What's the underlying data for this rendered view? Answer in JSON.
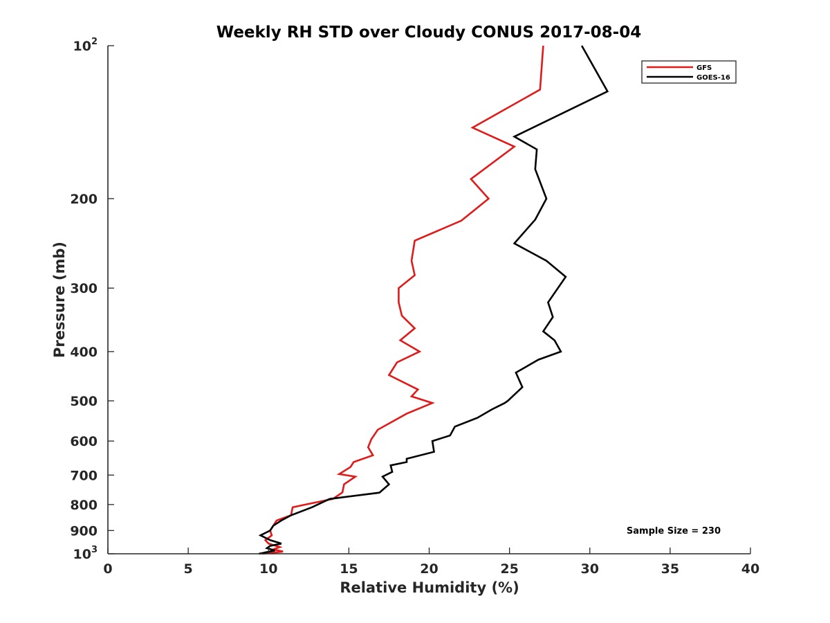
{
  "chart_data": {
    "type": "line",
    "title": "Weekly RH STD over Cloudy CONUS 2017-08-04",
    "xlabel": "Relative Humidity (%)",
    "ylabel": "Pressure (mb)",
    "xlim": [
      0,
      40
    ],
    "ylim": [
      100,
      1000
    ],
    "yscale": "log",
    "y_reversed": true,
    "grid": false,
    "xticks": [
      0,
      5,
      10,
      15,
      20,
      25,
      30,
      35,
      40
    ],
    "xtick_labels": [
      "0",
      "5",
      "10",
      "15",
      "20",
      "25",
      "30",
      "35",
      "40"
    ],
    "yticks": [
      100,
      200,
      300,
      400,
      500,
      600,
      700,
      800,
      900,
      1000
    ],
    "ytick_labels": [
      {
        "base": "10",
        "exp": "2"
      },
      {
        "base": "200"
      },
      {
        "base": "300"
      },
      {
        "base": "400"
      },
      {
        "base": "500"
      },
      {
        "base": "600"
      },
      {
        "base": "700"
      },
      {
        "base": "800"
      },
      {
        "base": "900"
      },
      {
        "base": "10",
        "exp": "3"
      }
    ],
    "legend_position": "top-right",
    "annotation": "Sample Size = 230",
    "series": [
      {
        "name": "GFS",
        "color": "#e11919",
        "x": [
          27.1,
          26.9,
          22.7,
          25.3,
          22.6,
          23.7,
          22.0,
          19.1,
          18.9,
          19.1,
          18.1,
          18.1,
          18.3,
          19.1,
          18.2,
          19.4,
          18.0,
          17.5,
          19.3,
          18.9,
          20.2,
          18.6,
          16.8,
          16.4,
          16.2,
          16.5,
          15.3,
          15.1,
          14.4,
          15.4,
          14.7,
          14.6,
          14.0,
          12.3,
          11.5,
          11.4,
          10.5,
          10.3,
          10.1,
          10.2,
          9.8,
          10.0,
          10.7,
          10.3,
          10.9,
          9.6
        ],
        "y": [
          100,
          122,
          145,
          158,
          183,
          200,
          221,
          242,
          265,
          283,
          300,
          320,
          340,
          360,
          380,
          400,
          420,
          445,
          475,
          490,
          505,
          530,
          570,
          595,
          617,
          640,
          660,
          675,
          697,
          705,
          730,
          757,
          780,
          800,
          810,
          840,
          860,
          880,
          900,
          920,
          940,
          955,
          970,
          980,
          990,
          1000
        ]
      },
      {
        "name": "GOES-16",
        "color": "#000000",
        "x": [
          29.5,
          31.1,
          25.3,
          26.7,
          26.6,
          27.3,
          26.6,
          25.3,
          27.3,
          28.5,
          27.4,
          27.7,
          27.1,
          27.8,
          28.2,
          26.8,
          25.4,
          25.8,
          24.9,
          24.7,
          23.9,
          23.0,
          21.6,
          21.3,
          20.2,
          20.3,
          18.6,
          18.6,
          17.6,
          17.7,
          17.1,
          17.5,
          16.9,
          13.8,
          12.7,
          11.4,
          10.8,
          10.3,
          10.1,
          9.5,
          10.1,
          10.8,
          10.1,
          9.9,
          10.4,
          9.4
        ],
        "y": [
          100,
          123,
          151,
          160,
          175,
          200,
          220,
          245,
          265,
          285,
          320,
          342,
          365,
          380,
          400,
          415,
          440,
          470,
          500,
          505,
          520,
          540,
          562,
          585,
          600,
          630,
          650,
          660,
          670,
          690,
          705,
          730,
          758,
          780,
          810,
          840,
          860,
          880,
          900,
          920,
          940,
          955,
          965,
          975,
          985,
          1000
        ]
      }
    ]
  }
}
